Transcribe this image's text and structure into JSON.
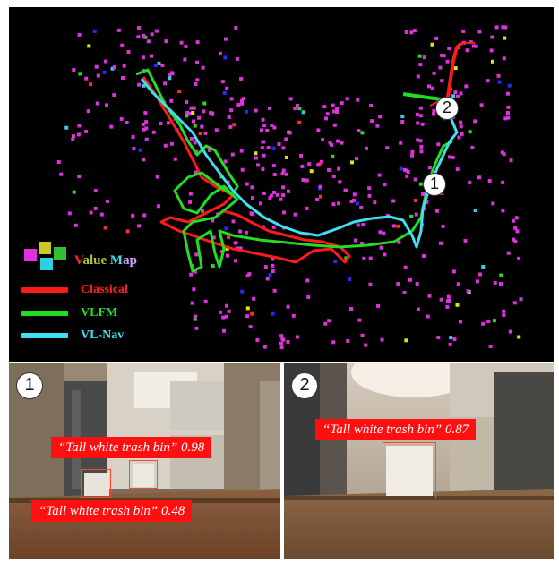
{
  "colors": {
    "classical": "#ff1a1a",
    "vlfm": "#22dd22",
    "vlnav": "#40e0f0",
    "map_point": "#e030e0",
    "detection": "#ff1010"
  },
  "legend": {
    "value_map": [
      "V",
      "alue ",
      "M",
      "ap"
    ],
    "classical": "Classical",
    "vlfm": "VLFM",
    "vlnav": "VL-Nav"
  },
  "map_markers": [
    "1",
    "2"
  ],
  "photos": [
    {
      "marker": "1",
      "detections": [
        {
          "label": "“Tall white trash bin” 0.98"
        },
        {
          "label": "“Tall white trash bin” 0.48"
        }
      ]
    },
    {
      "marker": "2",
      "detections": [
        {
          "label": "“Tall white trash bin” 0.87"
        }
      ]
    }
  ]
}
